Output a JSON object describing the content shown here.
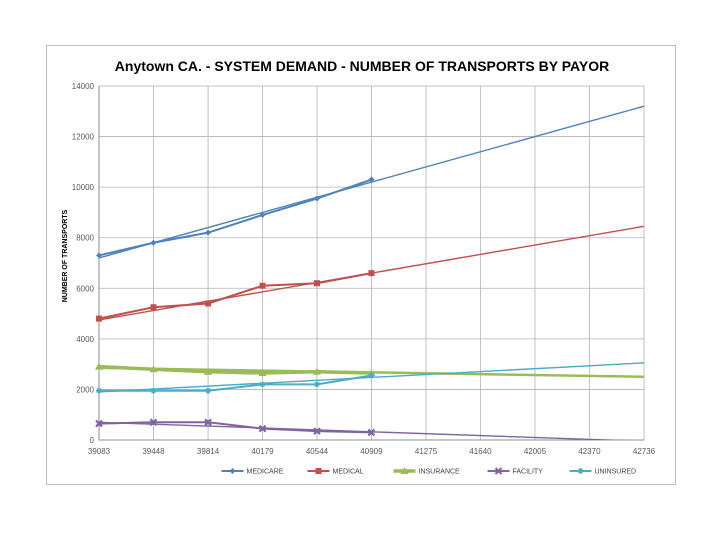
{
  "chart_data": {
    "type": "line",
    "title": "Anytown CA. - SYSTEM DEMAND - NUMBER OF TRANSPORTS BY PAYOR",
    "xlabel": "",
    "ylabel": "NUMBER OF TRANSPORTS",
    "xlim": [
      39083,
      42736
    ],
    "ylim": [
      0,
      14000
    ],
    "x_ticks": [
      39083,
      39448,
      39814,
      40179,
      40544,
      40909,
      41275,
      41640,
      42005,
      42370,
      42736
    ],
    "y_ticks": [
      0,
      2000,
      4000,
      6000,
      8000,
      10000,
      12000,
      14000
    ],
    "grid": true,
    "legend_position": "bottom",
    "series": [
      {
        "name": "MEDICARE",
        "color": "#4F81BD",
        "marker": "diamond",
        "x": [
          39083,
          39448,
          39814,
          40179,
          40544,
          40909
        ],
        "values": [
          7300,
          7800,
          8200,
          8900,
          9550,
          10300
        ],
        "trend": {
          "x": [
            39083,
            42736
          ],
          "values": [
            7200,
            13200
          ]
        }
      },
      {
        "name": "MEDICAL",
        "color": "#C0504D",
        "marker": "square",
        "x": [
          39083,
          39448,
          39814,
          40179,
          40544,
          40909
        ],
        "values": [
          4800,
          5250,
          5400,
          6100,
          6200,
          6600
        ],
        "trend": {
          "x": [
            39083,
            42736
          ],
          "values": [
            4750,
            8450
          ]
        }
      },
      {
        "name": "INSURANCE",
        "color": "#9BBB59",
        "marker": "triangle",
        "x": [
          39083,
          39448,
          39814,
          40179,
          40544,
          40909
        ],
        "values": [
          2900,
          2800,
          2700,
          2650,
          2700,
          2650
        ],
        "trend": {
          "x": [
            39083,
            42736
          ],
          "values": [
            2850,
            2500
          ]
        }
      },
      {
        "name": "FACILITY",
        "color": "#8064A2",
        "marker": "x",
        "x": [
          39083,
          39448,
          39814,
          40179,
          40544,
          40909
        ],
        "values": [
          650,
          700,
          700,
          450,
          350,
          300
        ],
        "trend": {
          "x": [
            39083,
            42736
          ],
          "values": [
            700,
            -50
          ]
        }
      },
      {
        "name": "UNINSURED",
        "color": "#4BACC6",
        "marker": "star",
        "x": [
          39083,
          39448,
          39814,
          40179,
          40544,
          40909
        ],
        "values": [
          1950,
          1950,
          1950,
          2200,
          2200,
          2550
        ],
        "trend": {
          "x": [
            39083,
            42736
          ],
          "values": [
            1900,
            3050
          ]
        }
      }
    ]
  }
}
